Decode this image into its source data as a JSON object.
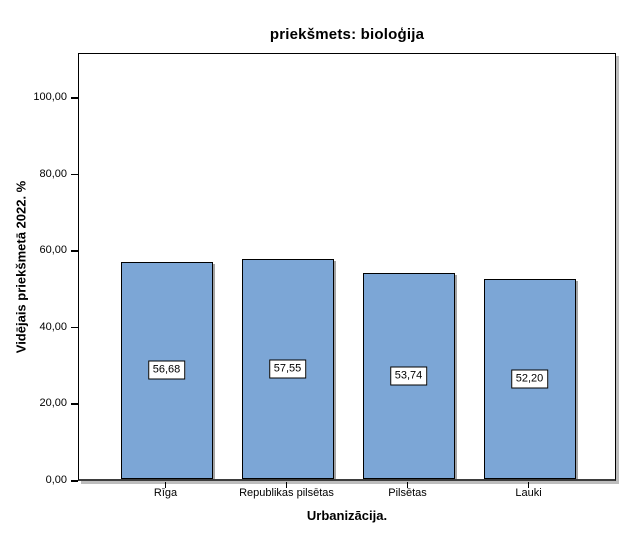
{
  "window": {
    "background": "#ffffff"
  },
  "chart_data": {
    "type": "bar",
    "title": "priekšmets: bioloģija",
    "categories": [
      "Rīga",
      "Republikas pilsētas",
      "Pilsētas",
      "Lauki"
    ],
    "values": [
      56.68,
      57.55,
      53.74,
      52.2
    ],
    "value_labels": [
      "56,68",
      "57,55",
      "53,74",
      "52,20"
    ],
    "xlabel": "Urbanizācija.",
    "ylabel": "Vidējais priekšmetā 2022. %",
    "ylim": [
      0,
      100
    ],
    "yticks": [
      "0,00",
      "20,00",
      "40,00",
      "60,00",
      "80,00",
      "100,00"
    ],
    "grid": false,
    "legend_position": "none",
    "bar_color": "#7CA6D6",
    "bar_border_color": "#000000",
    "value_label_box_bg": "#FFFFFF",
    "value_label_box_border": "#000000"
  }
}
